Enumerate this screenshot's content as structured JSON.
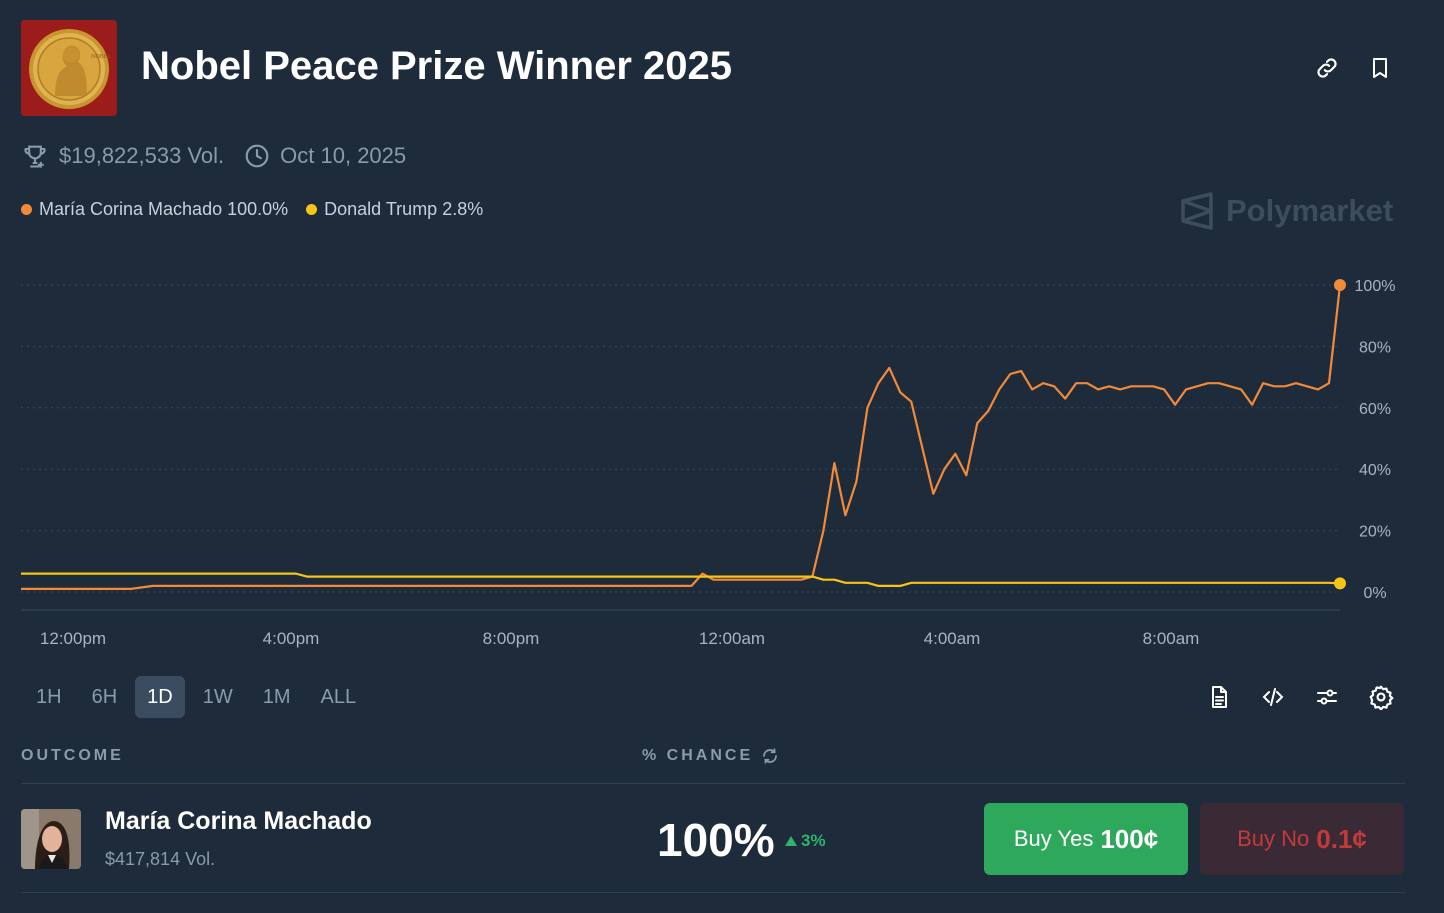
{
  "header": {
    "title": "Nobel Peace Prize Winner 2025",
    "market_image_icon": "nobel-medal-icon",
    "actions": [
      "link-icon",
      "bookmark-icon"
    ]
  },
  "meta": {
    "volume": "$19,822,533 Vol.",
    "end_date": "Oct 10, 2025"
  },
  "legend": [
    {
      "label": "María Corina Machado 100.0%",
      "color": "#f28a3a"
    },
    {
      "label": "Donald Trump 2.8%",
      "color": "#f5c518"
    }
  ],
  "brand": "Polymarket",
  "chart_data": {
    "type": "line",
    "x_ticks": [
      "12:00pm",
      "4:00pm",
      "8:00pm",
      "12:00am",
      "4:00am",
      "8:00am"
    ],
    "y_ticks": [
      "100%",
      "80%",
      "60%",
      "40%",
      "20%",
      "0%"
    ],
    "ylim": [
      0,
      100
    ],
    "grid": true,
    "legend_position": "top-left",
    "series": [
      {
        "name": "María Corina Machado",
        "color": "#f28a3a",
        "x": [
          0,
          0.1,
          0.2,
          0.3,
          0.4,
          0.5,
          0.6,
          0.66,
          0.7,
          0.75,
          0.8,
          0.85,
          0.9,
          0.95,
          1.0,
          1.05,
          1.1,
          1.15,
          1.2,
          1.25,
          1.3,
          1.35,
          1.4,
          1.45,
          1.5,
          1.55,
          1.6,
          1.65,
          1.7,
          1.75,
          1.8,
          1.85,
          1.9,
          1.95,
          2.0,
          2.05,
          2.1,
          2.15,
          2.2,
          2.25,
          2.3,
          2.35,
          2.4,
          2.45,
          2.5,
          2.55,
          2.6,
          2.65,
          2.7,
          2.75,
          2.8,
          2.85,
          2.9,
          2.95,
          3.0,
          3.05,
          3.1,
          3.15,
          3.2,
          3.25,
          3.3,
          3.35,
          3.4,
          3.45,
          3.5,
          3.55,
          3.6,
          3.65,
          3.7,
          3.75,
          3.8,
          3.85,
          3.9,
          3.95,
          4.0,
          4.05,
          4.1,
          4.15,
          4.2,
          4.25,
          4.3,
          4.35,
          4.4,
          4.45,
          4.5,
          4.55,
          4.6,
          4.65,
          4.7,
          4.75,
          4.8,
          4.85,
          4.9,
          4.95,
          5.0,
          5.05,
          5.1,
          5.15,
          5.2,
          5.25,
          5.3,
          5.35,
          5.4,
          5.45,
          5.5,
          5.55,
          5.6,
          5.65,
          5.7,
          5.75,
          5.8,
          5.85,
          5.9,
          5.95,
          6.0
        ],
        "values": [
          1,
          1,
          1,
          1,
          1,
          1,
          2,
          2,
          2,
          2,
          2,
          2,
          2,
          2,
          2,
          2,
          2,
          2,
          2,
          2,
          2,
          2,
          2,
          2,
          2,
          2,
          2,
          2,
          2,
          2,
          2,
          2,
          2,
          2,
          2,
          2,
          2,
          2,
          2,
          2,
          2,
          2,
          2,
          2,
          2,
          2,
          2,
          2,
          2,
          2,
          2,
          2,
          2,
          2,
          2,
          2,
          6,
          4,
          4,
          4,
          4,
          4,
          4,
          4,
          4,
          4,
          5,
          20,
          42,
          25,
          36,
          60,
          68,
          73,
          65,
          62,
          47,
          32,
          40,
          45,
          38,
          55,
          59,
          66,
          71,
          72,
          66,
          68,
          67,
          63,
          68,
          68,
          66,
          67,
          66,
          67,
          67,
          67,
          66,
          61,
          66,
          67,
          68,
          68,
          67,
          66,
          61,
          68,
          67,
          67,
          68,
          67,
          66,
          68,
          100
        ],
        "current": 100.0
      },
      {
        "name": "Donald Trump",
        "color": "#f5c518",
        "values": [
          6,
          6,
          6,
          6,
          6,
          6,
          6,
          6,
          6,
          6,
          6,
          6,
          6,
          6,
          6,
          6,
          6,
          6,
          6,
          6,
          5,
          5,
          5,
          5,
          5,
          5,
          5,
          5,
          5,
          5,
          5,
          5,
          5,
          5,
          5,
          5,
          5,
          5,
          5,
          5,
          5,
          5,
          5,
          5,
          5,
          5,
          5,
          5,
          5,
          5,
          5,
          5,
          5,
          5,
          5,
          5,
          5,
          5,
          5,
          5,
          5,
          5,
          5,
          5,
          5,
          5,
          5,
          4,
          4,
          3,
          3,
          3,
          2,
          2,
          2,
          3,
          3,
          3,
          3,
          3,
          3,
          3,
          3,
          3,
          3,
          3,
          3,
          3,
          3,
          3,
          3,
          3,
          3,
          3,
          3,
          3,
          3,
          3,
          3,
          3,
          3,
          3,
          3,
          3,
          3,
          3,
          3,
          3,
          3,
          3,
          3,
          3,
          3,
          3,
          2.8
        ],
        "current": 2.8
      }
    ]
  },
  "time_ranges": {
    "items": [
      "1H",
      "6H",
      "1D",
      "1W",
      "1M",
      "ALL"
    ],
    "selected": "1D"
  },
  "tools": [
    "document-icon",
    "code-icon",
    "sliders-icon",
    "gear-icon"
  ],
  "outcome_table": {
    "col_outcome": "OUTCOME",
    "col_chance": "% CHANCE",
    "rows": [
      {
        "name": "María Corina Machado",
        "volume": "$417,814 Vol.",
        "chance": "100%",
        "delta": "3%",
        "buy_yes_label": "Buy Yes",
        "buy_yes_price": "100¢",
        "buy_no_label": "Buy No",
        "buy_no_price": "0.1¢"
      }
    ]
  }
}
